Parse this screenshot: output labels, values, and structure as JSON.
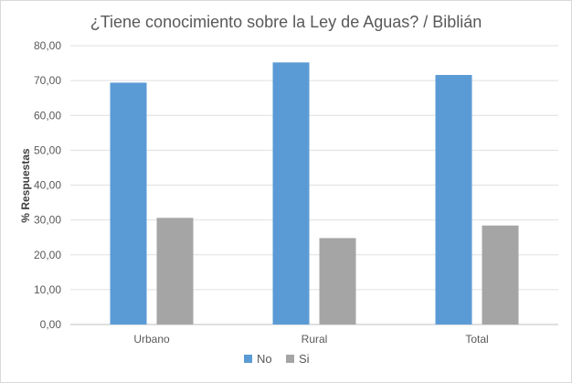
{
  "chart_data": {
    "type": "bar",
    "title": "¿Tiene conocimiento sobre la Ley de Aguas? / Biblián",
    "xlabel": "",
    "ylabel": "% Respuestas",
    "categories": [
      "Urbano",
      "Rural",
      "Total"
    ],
    "series": [
      {
        "name": "No",
        "color": "#5b9bd5",
        "values": [
          69.4,
          75.2,
          71.6
        ]
      },
      {
        "name": "Si",
        "color": "#a5a5a5",
        "values": [
          30.6,
          24.8,
          28.4
        ]
      }
    ],
    "ylim": [
      0,
      80
    ],
    "yticks": [
      "0,00",
      "10,00",
      "20,00",
      "30,00",
      "40,00",
      "50,00",
      "60,00",
      "70,00",
      "80,00"
    ],
    "grid": true,
    "legend_position": "bottom"
  }
}
